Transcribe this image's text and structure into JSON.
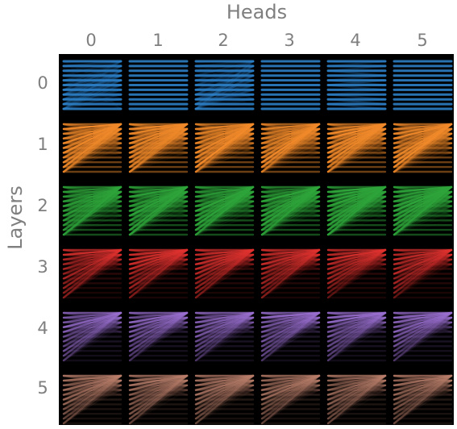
{
  "titles": {
    "heads": "Heads",
    "layers": "Layers"
  },
  "heads": [
    "0",
    "1",
    "2",
    "3",
    "4",
    "5"
  ],
  "layers": [
    "0",
    "1",
    "2",
    "3",
    "4",
    "5"
  ],
  "layer_colors": [
    "#2f86d1",
    "#f0892a",
    "#2ea43a",
    "#e0322f",
    "#9a6fd0",
    "#b97e6a"
  ]
}
